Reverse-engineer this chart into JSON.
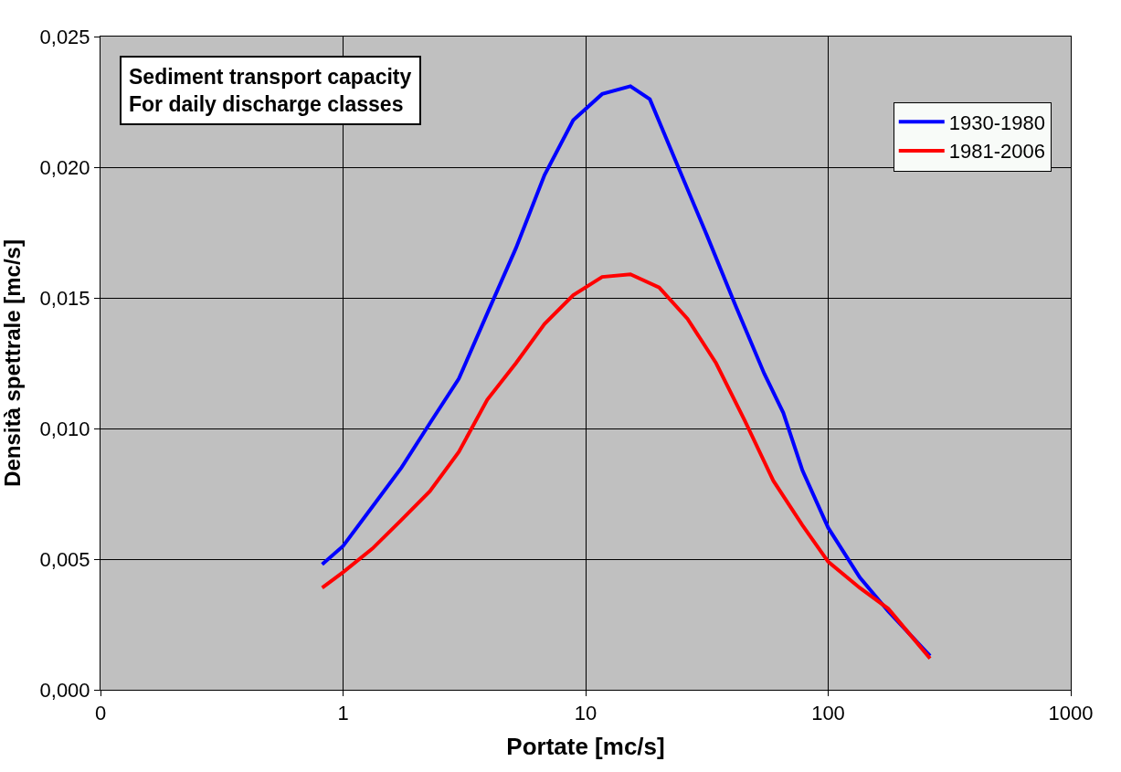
{
  "chart_data": {
    "type": "line",
    "xlabel": "Portate [mc/s]",
    "ylabel": "Densità spettrale [mc/s]",
    "annotations": [
      "Sediment transport capacity\nFor daily discharge classes"
    ],
    "log": "x",
    "xlim": [
      0.1,
      1000
    ],
    "xticks": [
      {
        "value": 0.1,
        "label": "0"
      },
      1,
      10,
      100,
      1000
    ],
    "ylim": [
      0,
      0.025
    ],
    "yticks": [
      {
        "value": 0,
        "label": "0,000"
      },
      {
        "value": 0.005,
        "label": "0,005"
      },
      {
        "value": 0.01,
        "label": "0,010"
      },
      {
        "value": 0.015,
        "label": "0,015"
      },
      {
        "value": 0.02,
        "label": "0,020"
      },
      {
        "value": 0.025,
        "label": "0,025"
      }
    ],
    "grid": true,
    "legend": "top right",
    "marker": "none",
    "line_style": "solid",
    "series": [
      {
        "name": "1930-1980",
        "color": "#0000ff",
        "x": [
          0.82,
          1.0,
          1.32,
          1.74,
          2.28,
          3.0,
          3.93,
          5.16,
          6.77,
          8.89,
          11.7,
          15.3,
          18.4,
          24.1,
          31.6,
          41.5,
          54.5,
          65.3,
          78.3,
          100,
          135,
          177,
          263
        ],
        "values": [
          0.0048,
          0.0055,
          0.007,
          0.0085,
          0.0102,
          0.0119,
          0.0144,
          0.0169,
          0.0197,
          0.0218,
          0.0228,
          0.0231,
          0.0226,
          0.02,
          0.0174,
          0.0147,
          0.0121,
          0.0106,
          0.0084,
          0.0062,
          0.0043,
          0.003,
          0.0013
        ]
      },
      {
        "name": "1981-2006",
        "color": "#ff0000",
        "x": [
          0.82,
          1.0,
          1.32,
          1.74,
          2.28,
          3.0,
          3.93,
          5.16,
          6.77,
          8.89,
          11.7,
          15.3,
          20.1,
          26.3,
          34.5,
          45.3,
          59.4,
          78.3,
          100,
          135,
          177,
          263
        ],
        "values": [
          0.0039,
          0.0045,
          0.0054,
          0.0065,
          0.0076,
          0.0091,
          0.0111,
          0.0125,
          0.014,
          0.0151,
          0.0158,
          0.0159,
          0.0154,
          0.0142,
          0.0125,
          0.0103,
          0.008,
          0.0063,
          0.0049,
          0.0039,
          0.0031,
          0.0012
        ]
      }
    ]
  }
}
